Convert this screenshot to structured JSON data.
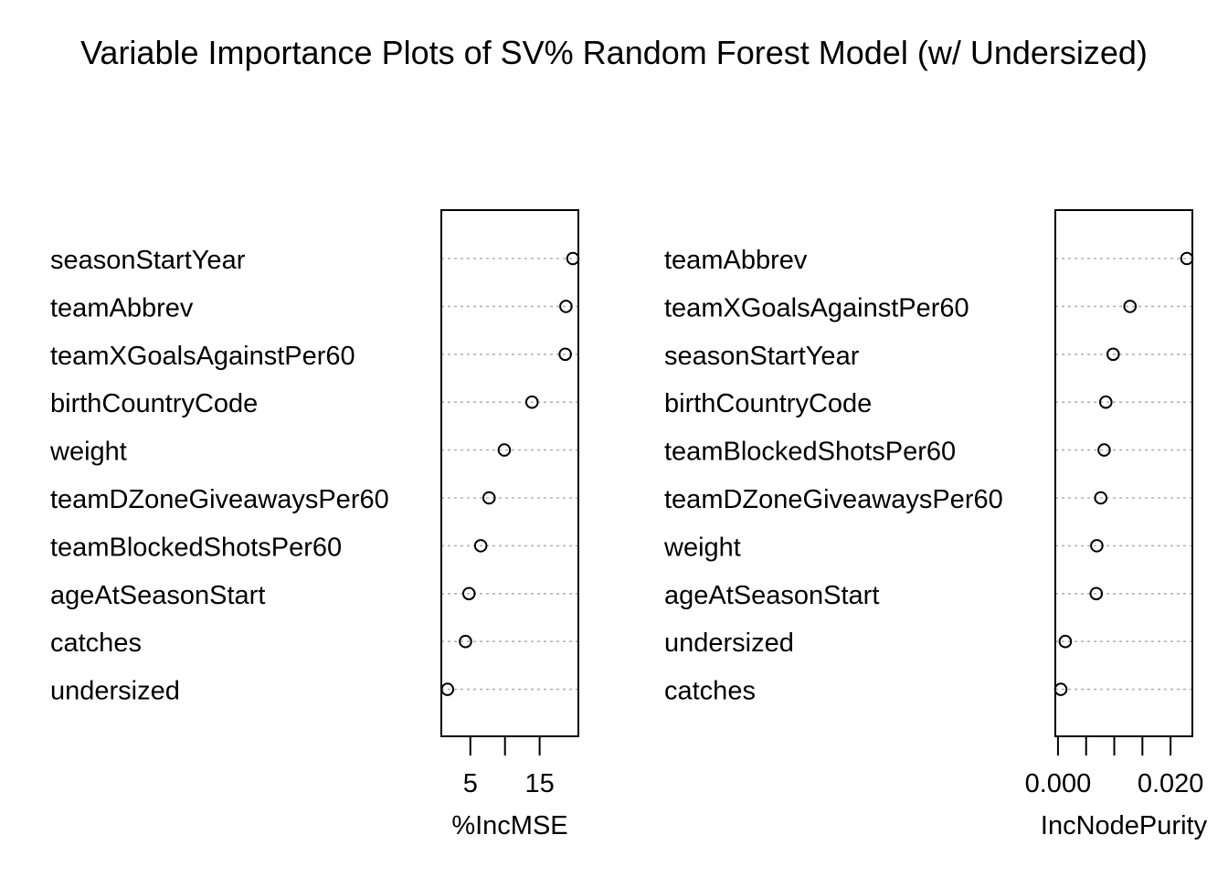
{
  "title": "Variable Importance Plots of SV% Random Forest Model (w/ Undersized)",
  "chart_data": [
    {
      "type": "dotchart",
      "xlabel": "%IncMSE",
      "xticks": [
        5,
        15
      ],
      "xtick_minor": [
        5,
        10,
        15
      ],
      "xlim": [
        1.6,
        19.8
      ],
      "grid": "dotted",
      "categories": [
        "seasonStartYear",
        "teamAbbrev",
        "teamXGoalsAgainstPer60",
        "birthCountryCode",
        "weight",
        "teamDZoneGiveawaysPer60",
        "teamBlockedShotsPer60",
        "ageAtSeasonStart",
        "catches",
        "undersized"
      ],
      "values": [
        19.8,
        18.8,
        18.7,
        13.9,
        9.9,
        7.7,
        6.5,
        4.8,
        4.3,
        1.7
      ]
    },
    {
      "type": "dotchart",
      "xlabel": "IncNodePurity",
      "xticks": [
        0.0,
        0.02
      ],
      "xtick_labels": [
        "0.000",
        "0.020"
      ],
      "xtick_minor": [
        0.0,
        0.005,
        0.01,
        0.015,
        0.02
      ],
      "xlim": [
        0.0005,
        0.0229
      ],
      "grid": "dotted",
      "categories": [
        "teamAbbrev",
        "teamXGoalsAgainstPer60",
        "seasonStartYear",
        "birthCountryCode",
        "teamBlockedShotsPer60",
        "teamDZoneGiveawaysPer60",
        "weight",
        "ageAtSeasonStart",
        "undersized",
        "catches"
      ],
      "values": [
        0.0229,
        0.0128,
        0.0098,
        0.0085,
        0.0082,
        0.0076,
        0.0069,
        0.0068,
        0.0013,
        0.0005
      ]
    }
  ]
}
